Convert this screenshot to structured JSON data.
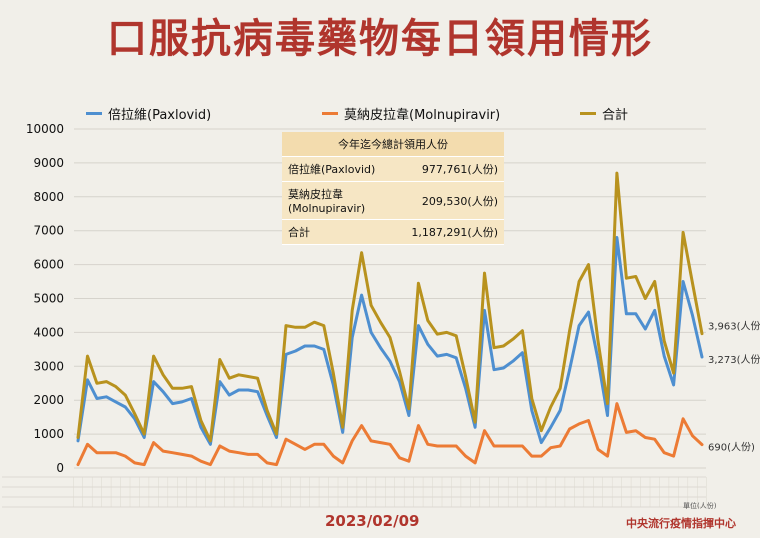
{
  "title": "口服抗病毒藥物每日領用情形",
  "footer": {
    "date": "2023/02/09",
    "org": "中央流行疫情指揮中心",
    "unit_note": "單位(人份)"
  },
  "summary_table": {
    "header": "今年迄今總計領用人份",
    "rows": [
      {
        "label": "倍拉維(Paxlovid)",
        "value": "977,761(人份)"
      },
      {
        "label": "莫納皮拉韋\n(Molnupiravir)",
        "value": "209,530(人份)"
      },
      {
        "label": "合計",
        "value": "1,187,291(人份)"
      }
    ]
  },
  "end_labels": {
    "total": "3,963(人份)",
    "paxlovid": "3,273(人份)",
    "molnupiravir": "690(人份)"
  },
  "chart_data": {
    "type": "line",
    "ylim": [
      0,
      10000
    ],
    "yticks": [
      0,
      1000,
      2000,
      3000,
      4000,
      5000,
      6000,
      7000,
      8000,
      9000,
      10000
    ],
    "grid": true,
    "legend_position": "top",
    "series": [
      {
        "name": "倍拉維(Paxlovid)",
        "color": "#4e8fd0",
        "values": [
          800,
          2600,
          2050,
          2100,
          1950,
          1800,
          1450,
          900,
          2550,
          2250,
          1900,
          1950,
          2050,
          1200,
          700,
          2550,
          2150,
          2300,
          2300,
          2250,
          1550,
          900,
          3350,
          3450,
          3600,
          3600,
          3500,
          2450,
          1050,
          3850,
          5100,
          4000,
          3550,
          3150,
          2550,
          1550,
          4200,
          3650,
          3300,
          3350,
          3250,
          2350,
          1200,
          4650,
          2900,
          2950,
          3150,
          3400,
          1700,
          750,
          1200,
          1700,
          2900,
          4200,
          4600,
          3200,
          1550,
          6800,
          4550,
          4550,
          4100,
          4650,
          3300,
          2450,
          5500,
          4500,
          3273
        ]
      },
      {
        "name": "莫納皮拉韋(Molnupiravir)",
        "color": "#ec7b35",
        "values": [
          100,
          700,
          450,
          450,
          450,
          350,
          150,
          100,
          750,
          500,
          450,
          400,
          350,
          200,
          100,
          650,
          500,
          450,
          400,
          400,
          150,
          100,
          850,
          700,
          550,
          700,
          700,
          350,
          150,
          800,
          1250,
          800,
          750,
          700,
          300,
          200,
          1250,
          700,
          650,
          650,
          650,
          350,
          150,
          1100,
          650,
          650,
          650,
          650,
          350,
          350,
          600,
          650,
          1150,
          1300,
          1400,
          550,
          350,
          1900,
          1050,
          1100,
          900,
          850,
          450,
          350,
          1450,
          950,
          690
        ]
      },
      {
        "name": "合計",
        "color": "#b8921e",
        "values": [
          900,
          3300,
          2500,
          2550,
          2400,
          2150,
          1600,
          1000,
          3300,
          2750,
          2350,
          2350,
          2400,
          1400,
          800,
          3200,
          2650,
          2750,
          2700,
          2650,
          1700,
          1000,
          4200,
          4150,
          4150,
          4300,
          4200,
          2800,
          1200,
          4650,
          6350,
          4800,
          4300,
          3850,
          2850,
          1750,
          5450,
          4350,
          3950,
          4000,
          3900,
          2700,
          1350,
          5750,
          3550,
          3600,
          3800,
          4050,
          2050,
          1100,
          1800,
          2350,
          4050,
          5500,
          6000,
          3750,
          1900,
          8700,
          5600,
          5650,
          5000,
          5500,
          3750,
          2800,
          6950,
          5450,
          3963
        ]
      }
    ]
  }
}
